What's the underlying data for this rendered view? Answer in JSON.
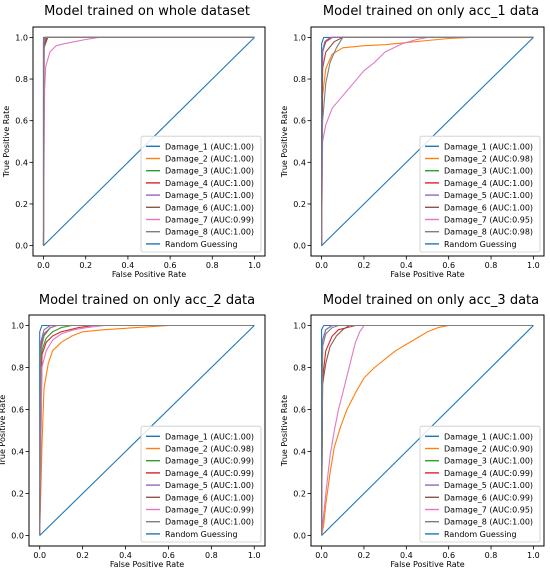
{
  "colors": {
    "Damage_1": "#1f77b4",
    "Damage_2": "#ff7f0e",
    "Damage_3": "#2ca02c",
    "Damage_4": "#d62728",
    "Damage_5": "#9467bd",
    "Damage_6": "#8c564b",
    "Damage_7": "#e377c2",
    "Damage_8": "#7f7f7f",
    "Random Guessing": "#1f77b4"
  },
  "chart_data": [
    {
      "type": "line",
      "title": "Model trained on whole dataset",
      "xlabel": "False Positive Rate",
      "ylabel": "True Positive Rate",
      "xlim": [
        -0.05,
        1.05
      ],
      "ylim": [
        -0.05,
        1.05
      ],
      "xticks": [
        "0.0",
        "0.2",
        "0.4",
        "0.6",
        "0.8",
        "1.0"
      ],
      "yticks": [
        "0.0",
        "0.2",
        "0.4",
        "0.6",
        "0.8",
        "1.0"
      ],
      "grid": false,
      "legend": "lower right",
      "series": [
        {
          "name": "Damage_1 (AUC:1.00)",
          "key": "Damage_1",
          "x": [
            0,
            0,
            1
          ],
          "y": [
            0,
            1,
            1
          ]
        },
        {
          "name": "Damage_2 (AUC:1.00)",
          "key": "Damage_2",
          "x": [
            0,
            0.002,
            0.01,
            1
          ],
          "y": [
            0,
            0.97,
            1,
            1
          ]
        },
        {
          "name": "Damage_3 (AUC:1.00)",
          "key": "Damage_3",
          "x": [
            0,
            0,
            0.005,
            1
          ],
          "y": [
            0,
            0.98,
            1,
            1
          ]
        },
        {
          "name": "Damage_4 (AUC:1.00)",
          "key": "Damage_4",
          "x": [
            0,
            0.003,
            0.015,
            1
          ],
          "y": [
            0,
            0.96,
            1,
            1
          ]
        },
        {
          "name": "Damage_5 (AUC:1.00)",
          "key": "Damage_5",
          "x": [
            0,
            0,
            0.005,
            1
          ],
          "y": [
            0,
            0.99,
            1,
            1
          ]
        },
        {
          "name": "Damage_6 (AUC:1.00)",
          "key": "Damage_6",
          "x": [
            0,
            0.002,
            0.02,
            1
          ],
          "y": [
            0,
            0.95,
            1,
            1
          ]
        },
        {
          "name": "Damage_7 (AUC:0.99)",
          "key": "Damage_7",
          "x": [
            0,
            0.005,
            0.01,
            0.03,
            0.06,
            0.1,
            0.15,
            0.2,
            0.26,
            1
          ],
          "y": [
            0,
            0.75,
            0.86,
            0.93,
            0.96,
            0.97,
            0.98,
            0.99,
            1,
            1
          ]
        },
        {
          "name": "Damage_8 (AUC:1.00)",
          "key": "Damage_8",
          "x": [
            0,
            0.002,
            0.01,
            1
          ],
          "y": [
            0,
            0.97,
            1,
            1
          ]
        },
        {
          "name": "Random Guessing",
          "key": "Random Guessing",
          "x": [
            0,
            1
          ],
          "y": [
            0,
            1
          ]
        }
      ]
    },
    {
      "type": "line",
      "title": "Model trained on only acc_1 data",
      "xlabel": "False Positive Rate",
      "ylabel": "True Positive Rate",
      "xlim": [
        -0.05,
        1.05
      ],
      "ylim": [
        -0.05,
        1.05
      ],
      "xticks": [
        "0.0",
        "0.2",
        "0.4",
        "0.6",
        "0.8",
        "1.0"
      ],
      "yticks": [
        "0.0",
        "0.2",
        "0.4",
        "0.6",
        "0.8",
        "1.0"
      ],
      "grid": false,
      "legend": "lower right",
      "series": [
        {
          "name": "Damage_1 (AUC:1.00)",
          "key": "Damage_1",
          "x": [
            0,
            0,
            0.01,
            1
          ],
          "y": [
            0,
            0.97,
            1,
            1
          ]
        },
        {
          "name": "Damage_2 (AUC:0.98)",
          "key": "Damage_2",
          "x": [
            0,
            0.005,
            0.02,
            0.05,
            0.1,
            0.2,
            0.3,
            0.4,
            0.5,
            0.6,
            0.7,
            1
          ],
          "y": [
            0,
            0.72,
            0.85,
            0.92,
            0.95,
            0.96,
            0.965,
            0.975,
            0.985,
            0.995,
            1,
            1
          ]
        },
        {
          "name": "Damage_3 (AUC:1.00)",
          "key": "Damage_3",
          "x": [
            0,
            0.005,
            0.02,
            0.05,
            1
          ],
          "y": [
            0,
            0.93,
            0.98,
            1,
            1
          ]
        },
        {
          "name": "Damage_4 (AUC:1.00)",
          "key": "Damage_4",
          "x": [
            0,
            0.005,
            0.02,
            0.05,
            1
          ],
          "y": [
            0,
            0.94,
            0.98,
            1,
            1
          ]
        },
        {
          "name": "Damage_5 (AUC:1.00)",
          "key": "Damage_5",
          "x": [
            0,
            0.003,
            0.015,
            0.04,
            1
          ],
          "y": [
            0,
            0.93,
            0.98,
            1,
            1
          ]
        },
        {
          "name": "Damage_6 (AUC:1.00)",
          "key": "Damage_6",
          "x": [
            0,
            0.005,
            0.02,
            0.06,
            0.1,
            1
          ],
          "y": [
            0,
            0.85,
            0.93,
            0.98,
            1,
            1
          ]
        },
        {
          "name": "Damage_7 (AUC:0.95)",
          "key": "Damage_7",
          "x": [
            0,
            0.005,
            0.02,
            0.05,
            0.1,
            0.15,
            0.2,
            0.25,
            0.3,
            0.38,
            0.45,
            0.5,
            1
          ],
          "y": [
            0,
            0.5,
            0.58,
            0.66,
            0.72,
            0.78,
            0.84,
            0.88,
            0.93,
            0.97,
            0.99,
            1,
            1
          ]
        },
        {
          "name": "Damage_8 (AUC:0.98)",
          "key": "Damage_8",
          "x": [
            0,
            0.005,
            0.02,
            0.04,
            0.07,
            0.1,
            1
          ],
          "y": [
            0,
            0.6,
            0.78,
            0.88,
            0.95,
            1,
            1
          ]
        },
        {
          "name": "Random Guessing",
          "key": "Random Guessing",
          "x": [
            0,
            1
          ],
          "y": [
            0,
            1
          ]
        }
      ]
    },
    {
      "type": "line",
      "title": "Model trained on only acc_2 data",
      "xlabel": "False Positive Rate",
      "ylabel": "True Positive Rate",
      "xlim": [
        -0.05,
        1.05
      ],
      "ylim": [
        -0.05,
        1.05
      ],
      "xticks": [
        "0.0",
        "0.2",
        "0.4",
        "0.6",
        "0.8",
        "1.0"
      ],
      "yticks": [
        "0.0",
        "0.2",
        "0.4",
        "0.6",
        "0.8",
        "1.0"
      ],
      "grid": false,
      "legend": "lower right",
      "series": [
        {
          "name": "Damage_1 (AUC:1.00)",
          "key": "Damage_1",
          "x": [
            0,
            0,
            0.01,
            1
          ],
          "y": [
            0,
            0.97,
            1,
            1
          ]
        },
        {
          "name": "Damage_2 (AUC:0.98)",
          "key": "Damage_2",
          "x": [
            0,
            0.01,
            0.02,
            0.04,
            0.06,
            0.1,
            0.15,
            0.2,
            0.3,
            0.45,
            0.6,
            1
          ],
          "y": [
            0,
            0.42,
            0.7,
            0.82,
            0.88,
            0.92,
            0.95,
            0.97,
            0.98,
            0.99,
            1,
            1
          ]
        },
        {
          "name": "Damage_3 (AUC:0.99)",
          "key": "Damage_3",
          "x": [
            0,
            0.01,
            0.03,
            0.06,
            0.1,
            0.15,
            1
          ],
          "y": [
            0,
            0.88,
            0.94,
            0.97,
            0.99,
            1,
            1
          ]
        },
        {
          "name": "Damage_4 (AUC:0.99)",
          "key": "Damage_4",
          "x": [
            0,
            0.01,
            0.03,
            0.06,
            0.1,
            0.18,
            0.25,
            1
          ],
          "y": [
            0,
            0.86,
            0.92,
            0.95,
            0.97,
            0.99,
            1,
            1
          ]
        },
        {
          "name": "Damage_5 (AUC:1.00)",
          "key": "Damage_5",
          "x": [
            0,
            0.005,
            0.02,
            0.05,
            1
          ],
          "y": [
            0,
            0.92,
            0.98,
            1,
            1
          ]
        },
        {
          "name": "Damage_6 (AUC:1.00)",
          "key": "Damage_6",
          "x": [
            0,
            0.005,
            0.02,
            0.05,
            0.08,
            1
          ],
          "y": [
            0,
            0.9,
            0.96,
            0.99,
            1,
            1
          ]
        },
        {
          "name": "Damage_7 (AUC:0.99)",
          "key": "Damage_7",
          "x": [
            0,
            0.01,
            0.03,
            0.06,
            0.1,
            0.16,
            0.22,
            0.3,
            1
          ],
          "y": [
            0,
            0.8,
            0.88,
            0.93,
            0.96,
            0.98,
            0.99,
            1,
            1
          ]
        },
        {
          "name": "Damage_8 (AUC:1.00)",
          "key": "Damage_8",
          "x": [
            0,
            0.005,
            0.02,
            0.05,
            0.08,
            1
          ],
          "y": [
            0,
            0.88,
            0.95,
            0.99,
            1,
            1
          ]
        },
        {
          "name": "Random Guessing",
          "key": "Random Guessing",
          "x": [
            0,
            1
          ],
          "y": [
            0,
            1
          ]
        }
      ]
    },
    {
      "type": "line",
      "title": "Model trained on only acc_3 data",
      "xlabel": "False Positive Rate",
      "ylabel": "True Positive Rate",
      "xlim": [
        -0.05,
        1.05
      ],
      "ylim": [
        -0.05,
        1.05
      ],
      "xticks": [
        "0.0",
        "0.2",
        "0.4",
        "0.6",
        "0.8",
        "1.0"
      ],
      "yticks": [
        "0.0",
        "0.2",
        "0.4",
        "0.6",
        "0.8",
        "1.0"
      ],
      "grid": false,
      "legend": "lower right",
      "series": [
        {
          "name": "Damage_1 (AUC:1.00)",
          "key": "Damage_1",
          "x": [
            0,
            0,
            0.01,
            1
          ],
          "y": [
            0,
            0.98,
            1,
            1
          ]
        },
        {
          "name": "Damage_2 (AUC:0.90)",
          "key": "Damage_2",
          "x": [
            0,
            0.01,
            0.02,
            0.04,
            0.06,
            0.09,
            0.12,
            0.16,
            0.2,
            0.25,
            0.3,
            0.35,
            0.4,
            0.45,
            0.5,
            0.55,
            0.6,
            1
          ],
          "y": [
            0,
            0.05,
            0.15,
            0.3,
            0.42,
            0.52,
            0.6,
            0.68,
            0.75,
            0.8,
            0.84,
            0.88,
            0.91,
            0.94,
            0.97,
            0.99,
            1,
            1
          ]
        },
        {
          "name": "Damage_3 (AUC:1.00)",
          "key": "Damage_3",
          "x": [
            0,
            0.005,
            0.02,
            0.05,
            1
          ],
          "y": [
            0,
            0.93,
            0.98,
            1,
            1
          ]
        },
        {
          "name": "Damage_4 (AUC:0.99)",
          "key": "Damage_4",
          "x": [
            0,
            0.005,
            0.02,
            0.05,
            0.08,
            0.12,
            0.16,
            1
          ],
          "y": [
            0,
            0.75,
            0.88,
            0.95,
            0.98,
            0.99,
            1,
            1
          ]
        },
        {
          "name": "Damage_5 (AUC:1.00)",
          "key": "Damage_5",
          "x": [
            0,
            0.005,
            0.02,
            0.05,
            1
          ],
          "y": [
            0,
            0.93,
            0.98,
            1,
            1
          ]
        },
        {
          "name": "Damage_6 (AUC:0.99)",
          "key": "Damage_6",
          "x": [
            0,
            0.005,
            0.02,
            0.04,
            0.07,
            0.1,
            0.13,
            1
          ],
          "y": [
            0,
            0.72,
            0.82,
            0.9,
            0.95,
            0.98,
            1,
            1
          ]
        },
        {
          "name": "Damage_7 (AUC:0.95)",
          "key": "Damage_7",
          "x": [
            0,
            0.02,
            0.04,
            0.06,
            0.08,
            0.1,
            0.12,
            0.14,
            0.16,
            0.18,
            0.2,
            1
          ],
          "y": [
            0,
            0.2,
            0.38,
            0.5,
            0.6,
            0.68,
            0.76,
            0.84,
            0.92,
            0.97,
            1,
            1
          ]
        },
        {
          "name": "Damage_8 (AUC:1.00)",
          "key": "Damage_8",
          "x": [
            0,
            0.005,
            0.02,
            0.05,
            0.08,
            1
          ],
          "y": [
            0,
            0.9,
            0.96,
            0.99,
            1,
            1
          ]
        },
        {
          "name": "Random Guessing",
          "key": "Random Guessing",
          "x": [
            0,
            1
          ],
          "y": [
            0,
            1
          ]
        }
      ]
    }
  ]
}
